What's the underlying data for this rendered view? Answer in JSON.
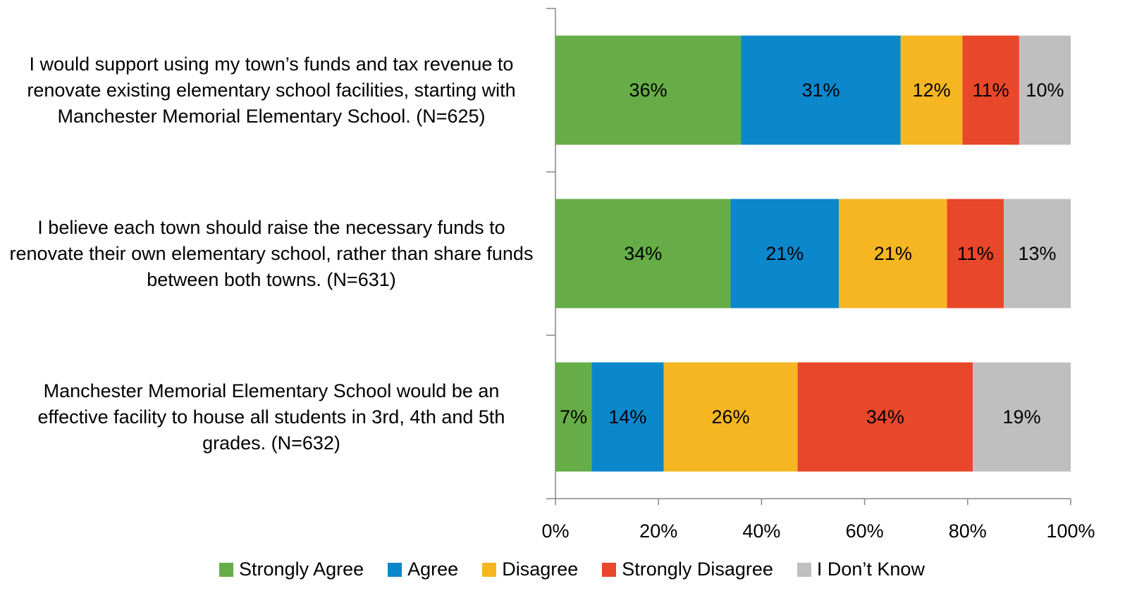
{
  "chart_data": {
    "type": "stacked-barh",
    "categories": [
      "I would support using my town’s funds and tax revenue to renovate existing elementary school facilities, starting with Manchester Memorial Elementary School. (N=625)",
      "I believe each town should raise the necessary funds to renovate their own elementary school, rather than share funds between both towns. (N=631)",
      "Manchester Memorial Elementary School would be an effective facility to house all students in 3rd, 4th and 5th grades. (N=632)"
    ],
    "series": [
      {
        "name": "Strongly Agree",
        "color": "#66ad47",
        "values": [
          36,
          34,
          7
        ],
        "value_labels": [
          "36%",
          "34%",
          "7%"
        ]
      },
      {
        "name": "Agree",
        "color": "#0b88cc",
        "values": [
          31,
          21,
          14
        ],
        "value_labels": [
          "31%",
          "21%",
          "14%"
        ]
      },
      {
        "name": "Disagree",
        "color": "#f5b622",
        "values": [
          12,
          21,
          26
        ],
        "value_labels": [
          "12%",
          "21%",
          "26%"
        ]
      },
      {
        "name": "Strongly Disagree",
        "color": "#e8472a",
        "values": [
          11,
          11,
          34
        ],
        "value_labels": [
          "11%",
          "11%",
          "34%"
        ]
      },
      {
        "name": "I Don’t Know",
        "color": "#bfbfbf",
        "values": [
          10,
          13,
          19
        ],
        "value_labels": [
          "10%",
          "13%",
          "19%"
        ]
      }
    ],
    "xlim": [
      0,
      100
    ],
    "xticks": [
      {
        "value": 0,
        "label": "0%"
      },
      {
        "value": 20,
        "label": "20%"
      },
      {
        "value": 40,
        "label": "40%"
      },
      {
        "value": 60,
        "label": "60%"
      },
      {
        "value": 80,
        "label": "80%"
      },
      {
        "value": 100,
        "label": "100%"
      }
    ],
    "legend": "bottom"
  }
}
